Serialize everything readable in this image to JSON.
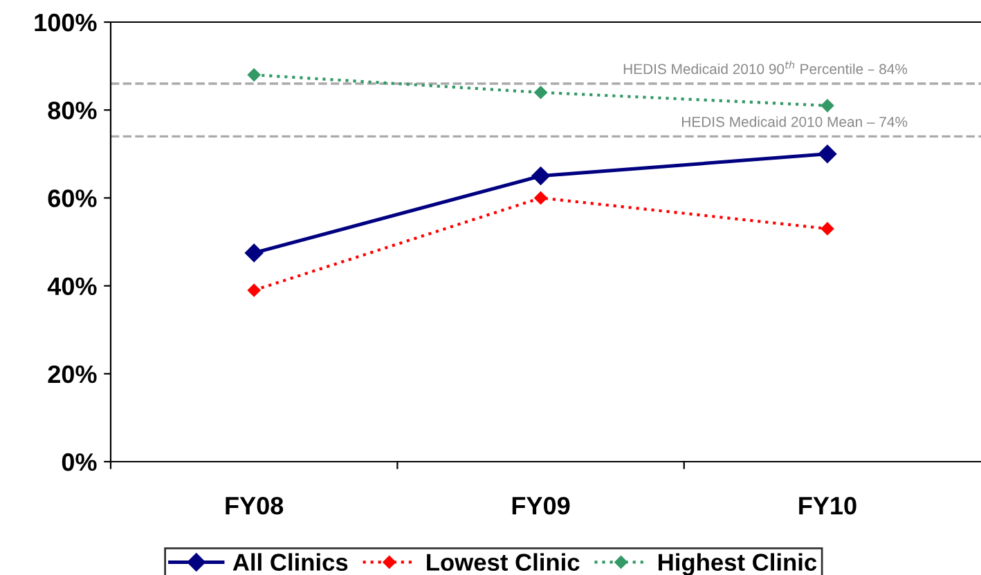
{
  "chart_data": {
    "type": "line",
    "categories": [
      "FY08",
      "FY09",
      "FY10"
    ],
    "series": [
      {
        "name": "All Clinics",
        "color": "#000080",
        "values": [
          47.5,
          65,
          70
        ],
        "line_style": "solid"
      },
      {
        "name": "Lowest Clinic",
        "color": "#ff0000",
        "values": [
          39,
          60,
          53
        ],
        "line_style": "dotted"
      },
      {
        "name": "Highest Clinic",
        "color": "#339966",
        "values": [
          88,
          84,
          81
        ],
        "line_style": "dotted"
      }
    ],
    "marker": "diamond",
    "ylim": [
      0,
      100
    ],
    "yticks": [
      {
        "value": 0,
        "label": "0%"
      },
      {
        "value": 20,
        "label": "20%"
      },
      {
        "value": 40,
        "label": "40%"
      },
      {
        "value": 60,
        "label": "60%"
      },
      {
        "value": 80,
        "label": "80%"
      },
      {
        "value": 100,
        "label": "100%"
      }
    ],
    "ref_lines": [
      {
        "axis": "y",
        "value": 86,
        "label": "HEDIS Medicaid 2010 90$^{th}$ Percentile – 84%",
        "color": "#aaaaaa",
        "line_style": "dashed"
      },
      {
        "axis": "y",
        "value": 74,
        "label": "HEDIS Medicaid 2010 Mean – 74%",
        "color": "#aaaaaa",
        "line_style": "dashed"
      }
    ],
    "grid": false,
    "legend": "bottom"
  }
}
